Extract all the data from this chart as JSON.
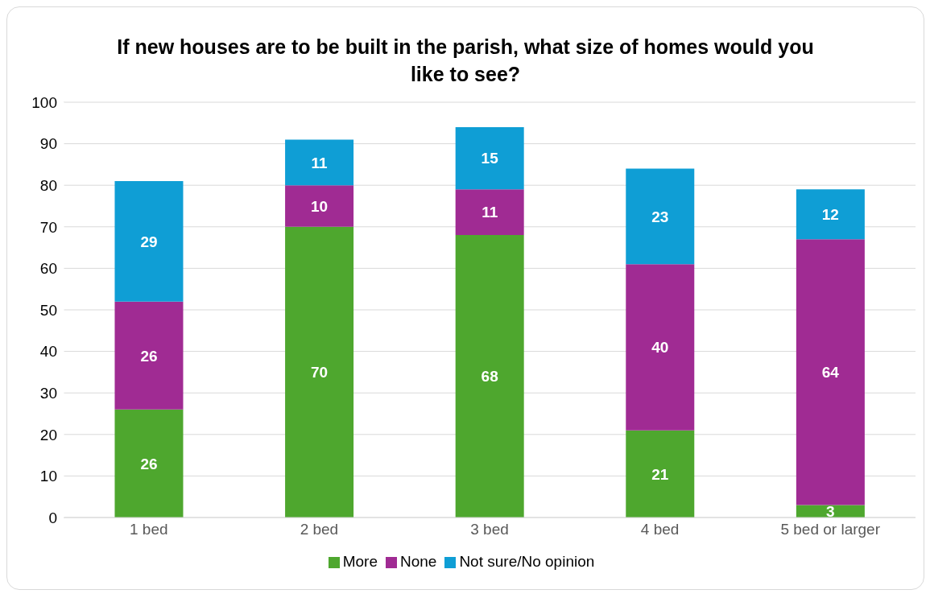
{
  "chart_data": {
    "type": "bar",
    "title": "If new houses are to be built in the parish, what size of homes would you like to see?",
    "categories": [
      "1 bed",
      "2 bed",
      "3 bed",
      "4 bed",
      "5 bed or larger"
    ],
    "series": [
      {
        "name": "More",
        "color": "#4ea72e",
        "values": [
          26,
          70,
          68,
          21,
          3
        ]
      },
      {
        "name": "None",
        "color": "#a02b93",
        "values": [
          26,
          10,
          11,
          40,
          64
        ]
      },
      {
        "name": "Not sure/No opinion",
        "color": "#0f9ed5",
        "values": [
          29,
          11,
          15,
          23,
          12
        ]
      }
    ],
    "stacked": true,
    "data_labels": true,
    "ylim": [
      0,
      100
    ],
    "yticks": [
      0,
      10,
      20,
      30,
      40,
      50,
      60,
      70,
      80,
      90,
      100
    ],
    "grid": "y",
    "legend": "bottom"
  }
}
